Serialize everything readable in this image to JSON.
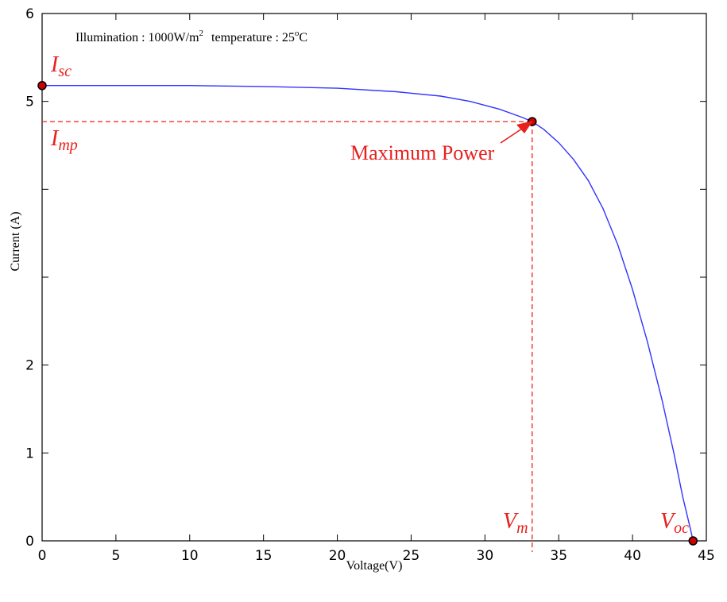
{
  "chart_data": {
    "type": "line",
    "xlabel": "Voltage(V)",
    "ylabel": "Current (A)",
    "xlim": [
      0,
      45
    ],
    "ylim": [
      0,
      6
    ],
    "x_ticks": [
      "0",
      "5",
      "10",
      "15",
      "20",
      "25",
      "30",
      "35",
      "40",
      "45"
    ],
    "y_ticks": [
      {
        "value": 0,
        "label": "0"
      },
      {
        "value": 1,
        "label": "1"
      },
      {
        "value": 2,
        "label": "2"
      },
      {
        "value": 3,
        "label": ""
      },
      {
        "value": 4,
        "label": ""
      },
      {
        "value": 5,
        "label": "5"
      },
      {
        "value": 6,
        "label": "6"
      }
    ],
    "grid": false,
    "series": [
      {
        "color": "#3333ff",
        "x": [
          0,
          5,
          10,
          15,
          20,
          24,
          27,
          29,
          31,
          32.5,
          33.2,
          34,
          35,
          36,
          37,
          38,
          39,
          40,
          41,
          42,
          42.8,
          43.4,
          43.9,
          44.1
        ],
        "y": [
          5.18,
          5.18,
          5.18,
          5.17,
          5.15,
          5.11,
          5.06,
          5.0,
          4.91,
          4.82,
          4.77,
          4.68,
          4.53,
          4.34,
          4.1,
          3.78,
          3.37,
          2.86,
          2.27,
          1.6,
          1.0,
          0.5,
          0.15,
          0.0
        ]
      }
    ],
    "info_text": "Illumination : 1000W/m",
    "info_sup": "2",
    "info_text2": "temperature : 25",
    "info_deg": "o",
    "info_unit": "C",
    "points": [
      {
        "name": "Isc",
        "x": 0,
        "y": 5.18,
        "label_main": "I",
        "label_sub": "sc"
      },
      {
        "name": "Maximum Power",
        "x": 33.2,
        "y": 4.77,
        "label": "Maximum Power"
      },
      {
        "name": "Voc",
        "x": 44.1,
        "y": 0.0,
        "label_main": "V",
        "label_sub": "oc"
      }
    ],
    "reference_lines": {
      "imp": {
        "y": 4.77,
        "label_main": "I",
        "label_sub": "mp"
      },
      "vm": {
        "x": 33.2,
        "label_main": "V",
        "label_sub": "m"
      }
    },
    "colors": {
      "curve": "#3333ff",
      "annotation": "#e8201e",
      "marker_fill": "#cc0000"
    }
  }
}
